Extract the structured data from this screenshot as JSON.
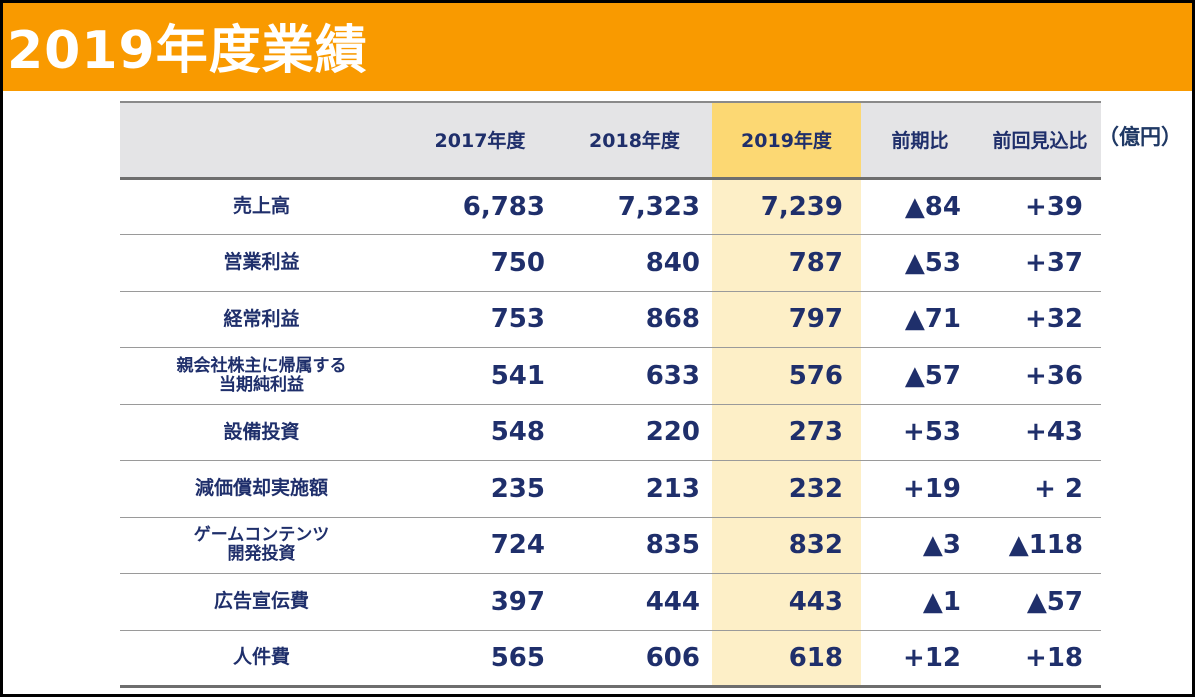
{
  "title": "2019年度業績",
  "unit": "（億円）",
  "columns": [
    "",
    "2017年度",
    "2018年度",
    "2019年度",
    "前期比",
    "前回見込比"
  ],
  "rows": [
    {
      "label": [
        "売上高"
      ],
      "values": [
        "6,783",
        "7,323",
        "7,239",
        "▲84",
        "+39"
      ]
    },
    {
      "label": [
        "営業利益"
      ],
      "values": [
        "750",
        "840",
        "787",
        "▲53",
        "+37"
      ]
    },
    {
      "label": [
        "経常利益"
      ],
      "values": [
        "753",
        "868",
        "797",
        "▲71",
        "+32"
      ]
    },
    {
      "label": [
        "親会社株主に帰属する",
        "当期純利益"
      ],
      "values": [
        "541",
        "633",
        "576",
        "▲57",
        "+36"
      ]
    },
    {
      "label": [
        "設備投資"
      ],
      "values": [
        "548",
        "220",
        "273",
        "+53",
        "+43"
      ]
    },
    {
      "label": [
        "減価償却実施額"
      ],
      "values": [
        "235",
        "213",
        "232",
        "+19",
        "+ 2"
      ]
    },
    {
      "label": [
        "ゲームコンテンツ",
        "開発投資"
      ],
      "values": [
        "724",
        "835",
        "832",
        "▲3",
        "▲118"
      ]
    },
    {
      "label": [
        "広告宣伝費"
      ],
      "values": [
        "397",
        "444",
        "443",
        "▲1",
        "▲57"
      ]
    },
    {
      "label": [
        "人件費"
      ],
      "values": [
        "565",
        "606",
        "618",
        "+12",
        "+18"
      ]
    }
  ],
  "colors": {
    "header_bar": "#f99a00",
    "highlight_header": "#fcd873",
    "highlight_cells": "#fdefc7",
    "text": "#1f2f6b"
  }
}
